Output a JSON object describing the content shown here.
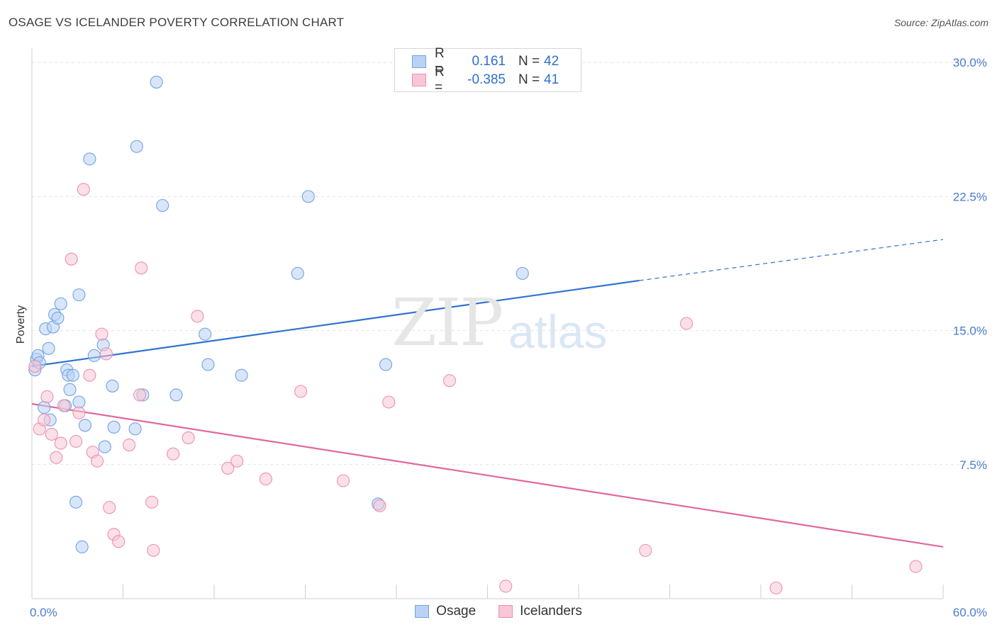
{
  "title": "OSAGE VS ICELANDER POVERTY CORRELATION CHART",
  "source": "Source: ZipAtlas.com",
  "watermark": {
    "zip": "ZIP",
    "atlas": "atlas"
  },
  "colors": {
    "osage": "#6fa3e6",
    "osage_fill": "#b9d2f4",
    "iceland": "#ee8fb0",
    "iceland_fill": "#f8c6d6",
    "osage_line": "#2f73d0",
    "iceland_line": "#e0689a",
    "tick": "#4a7cc9"
  },
  "legend_top": [
    {
      "label": "R =",
      "r": "0.161",
      "n_label": "N =",
      "n": "42",
      "series": "osage"
    },
    {
      "label": "R =",
      "r": "-0.385",
      "n_label": "N =",
      "n": "41",
      "series": "iceland"
    }
  ],
  "legend_bottom": [
    {
      "name": "Osage",
      "series": "osage"
    },
    {
      "name": "Icelanders",
      "series": "iceland"
    }
  ],
  "chart_data": {
    "type": "scatter",
    "xlabel": "",
    "ylabel": "Poverty",
    "xlim": [
      0,
      60
    ],
    "ylim": [
      0,
      30.8
    ],
    "x_tick_labels": [
      {
        "value": 0,
        "label": "0.0%"
      },
      {
        "value": 60,
        "label": "60.0%"
      }
    ],
    "y_tick_labels": [
      {
        "value": 7.5,
        "label": "7.5%"
      },
      {
        "value": 15,
        "label": "15.0%"
      },
      {
        "value": 22.5,
        "label": "22.5%"
      },
      {
        "value": 30,
        "label": "30.0%"
      }
    ],
    "series": [
      {
        "name": "Osage",
        "key": "osage",
        "points": [
          [
            0.2,
            12.8
          ],
          [
            0.3,
            13.4
          ],
          [
            0.4,
            13.6
          ],
          [
            0.5,
            13.2
          ],
          [
            0.8,
            10.7
          ],
          [
            0.9,
            15.1
          ],
          [
            1.1,
            14.0
          ],
          [
            1.2,
            10.0
          ],
          [
            1.4,
            15.2
          ],
          [
            1.5,
            15.9
          ],
          [
            1.7,
            15.7
          ],
          [
            1.9,
            16.5
          ],
          [
            2.2,
            10.8
          ],
          [
            2.3,
            12.8
          ],
          [
            2.4,
            12.5
          ],
          [
            2.5,
            11.7
          ],
          [
            2.7,
            12.5
          ],
          [
            2.9,
            5.4
          ],
          [
            3.1,
            11.0
          ],
          [
            3.1,
            17.0
          ],
          [
            3.3,
            2.9
          ],
          [
            3.5,
            9.7
          ],
          [
            3.8,
            24.6
          ],
          [
            4.1,
            13.6
          ],
          [
            4.7,
            14.2
          ],
          [
            4.8,
            8.5
          ],
          [
            5.3,
            11.9
          ],
          [
            5.4,
            9.6
          ],
          [
            6.8,
            9.5
          ],
          [
            6.9,
            25.3
          ],
          [
            7.3,
            11.4
          ],
          [
            8.2,
            28.9
          ],
          [
            8.6,
            22.0
          ],
          [
            9.5,
            11.4
          ],
          [
            11.4,
            14.8
          ],
          [
            11.6,
            13.1
          ],
          [
            13.8,
            12.5
          ],
          [
            17.5,
            18.2
          ],
          [
            18.2,
            22.5
          ],
          [
            22.8,
            5.3
          ],
          [
            23.3,
            13.1
          ],
          [
            32.3,
            18.2
          ]
        ]
      },
      {
        "name": "Icelanders",
        "key": "iceland",
        "points": [
          [
            0.2,
            13.0
          ],
          [
            0.5,
            9.5
          ],
          [
            0.8,
            10.0
          ],
          [
            1.0,
            11.3
          ],
          [
            1.3,
            9.2
          ],
          [
            1.6,
            7.9
          ],
          [
            1.9,
            8.7
          ],
          [
            2.1,
            10.8
          ],
          [
            2.6,
            19.0
          ],
          [
            2.9,
            8.8
          ],
          [
            3.1,
            10.4
          ],
          [
            3.4,
            22.9
          ],
          [
            3.8,
            12.5
          ],
          [
            4.0,
            8.2
          ],
          [
            4.3,
            7.7
          ],
          [
            4.6,
            14.8
          ],
          [
            4.9,
            13.7
          ],
          [
            5.1,
            5.1
          ],
          [
            5.4,
            3.6
          ],
          [
            5.7,
            3.2
          ],
          [
            6.4,
            8.6
          ],
          [
            7.1,
            11.4
          ],
          [
            7.2,
            18.5
          ],
          [
            7.9,
            5.4
          ],
          [
            8.0,
            2.7
          ],
          [
            9.3,
            8.1
          ],
          [
            10.3,
            9.0
          ],
          [
            10.9,
            15.8
          ],
          [
            12.9,
            7.3
          ],
          [
            13.5,
            7.7
          ],
          [
            15.4,
            6.7
          ],
          [
            17.7,
            11.6
          ],
          [
            20.5,
            6.6
          ],
          [
            22.9,
            5.2
          ],
          [
            23.5,
            11.0
          ],
          [
            27.5,
            12.2
          ],
          [
            31.2,
            0.7
          ],
          [
            40.4,
            2.7
          ],
          [
            43.1,
            15.4
          ],
          [
            49.0,
            0.6
          ],
          [
            58.2,
            1.8
          ]
        ]
      }
    ],
    "trend_lines": [
      {
        "series": "osage",
        "x0": 0,
        "y0": 13.0,
        "x1": 40,
        "y1": 17.8,
        "dash_x1": 60,
        "dash_y1": 20.1
      },
      {
        "series": "iceland",
        "x0": 0,
        "y0": 10.9,
        "x1": 60,
        "y1": 2.9
      }
    ]
  }
}
